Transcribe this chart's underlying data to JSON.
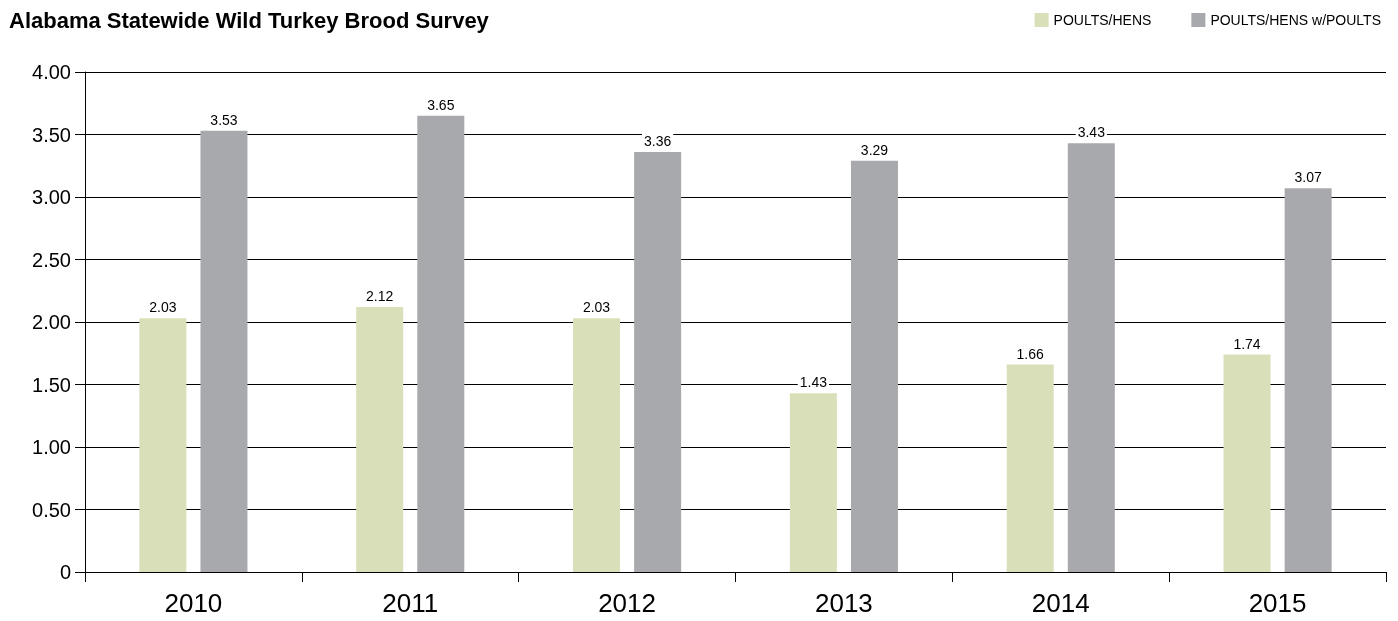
{
  "chart_data": {
    "type": "bar",
    "title": "Alabama Statewide Wild Turkey Brood Survey",
    "categories": [
      "2010",
      "2011",
      "2012",
      "2013",
      "2014",
      "2015"
    ],
    "series": [
      {
        "name": "POULTS/HENS",
        "color": "#d9dfb8",
        "values": [
          2.03,
          2.12,
          2.03,
          1.43,
          1.66,
          1.74
        ]
      },
      {
        "name": "POULTS/HENS w/POULTS",
        "color": "#a7a9ac",
        "values": [
          3.53,
          3.65,
          3.36,
          3.29,
          3.43,
          3.07
        ]
      }
    ],
    "ylim": [
      0,
      4
    ],
    "yticks": [
      0,
      {
        "value": 0.5,
        "label": "0.50"
      },
      {
        "value": 1,
        "label": "1.00"
      },
      {
        "value": 1.5,
        "label": "1.50"
      },
      {
        "value": 2,
        "label": "2.00"
      },
      {
        "value": 2.5,
        "label": "2.50"
      },
      {
        "value": 3,
        "label": "3.00"
      },
      {
        "value": 3.5,
        "label": "3.50"
      },
      {
        "value": 4,
        "label": "4.00"
      }
    ],
    "grid": "y",
    "legend": "top right",
    "data_labels": true
  }
}
